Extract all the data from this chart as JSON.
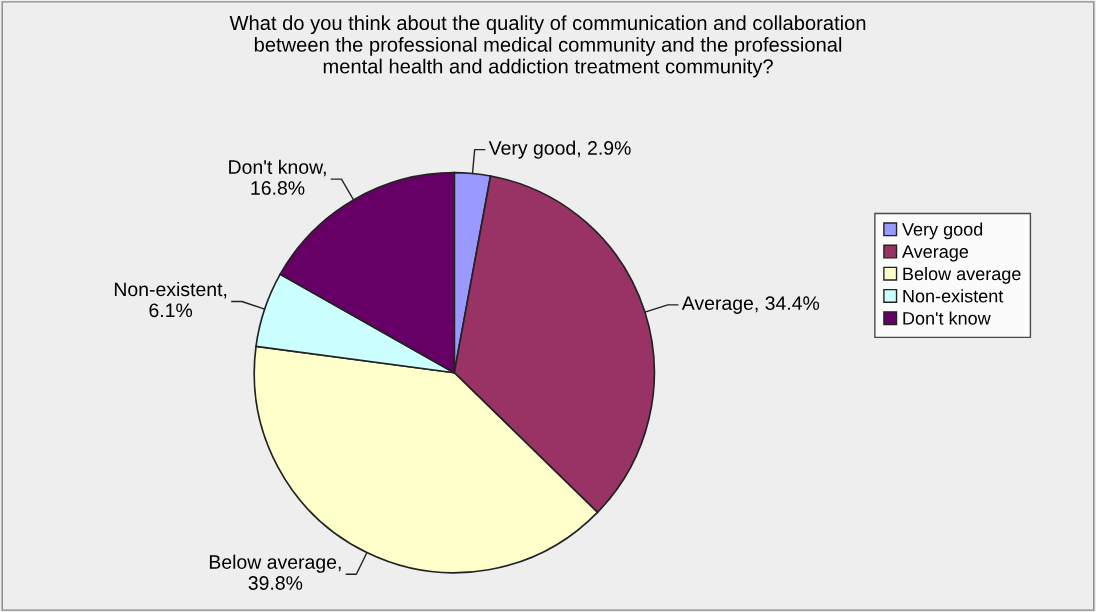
{
  "chart_data": {
    "type": "pie",
    "title": "What do you think about the quality of communication and collaboration\nbetween the professional medical community and the professional\nmental health and addiction treatment community?",
    "categories": [
      "Very good",
      "Average",
      "Below average",
      "Non-existent",
      "Don't know"
    ],
    "values": [
      2.9,
      34.4,
      39.8,
      6.1,
      16.8
    ],
    "colors": [
      "#9999ff",
      "#993366",
      "#ffffcc",
      "#ccffff",
      "#660066"
    ],
    "value_labels": [
      "Very good, 2.9%",
      "Average, 34.4%",
      "Below average,\n39.8%",
      "Non-existent,\n6.1%",
      "Don't know,\n16.8%"
    ],
    "legend": "right"
  }
}
